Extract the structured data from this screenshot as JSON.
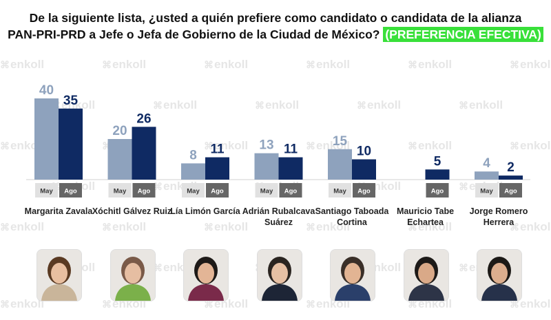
{
  "title": {
    "line1": "De la siguiente lista, ¿usted a quién prefiere como candidato o candidata de la alianza",
    "line2": "PAN-PRI-PRD a Jefe o Jefa de Gobierno de la Ciudad de México?",
    "badge": "(PREFERENCIA EFECTIVA)"
  },
  "watermark": {
    "text": "enkoll",
    "icon": "enkoll-logo-icon"
  },
  "colors": {
    "may": "#8ea2bd",
    "ago": "#0f2a63",
    "badge_bg": "#39e03a",
    "tab_may": "#e1e1e1",
    "tab_ago": "#666666"
  },
  "chart_data": {
    "type": "bar",
    "categories": [
      "Margarita Zavala",
      "Xóchitl Gálvez Ruiz",
      "Lía Limón García",
      "Adrián Rubalcava Suárez",
      "Santiago Taboada Cortina",
      "Mauricio Tabe Echartea",
      "Jorge Romero Herrera"
    ],
    "series": [
      {
        "name": "May",
        "values": [
          40,
          20,
          8,
          13,
          15,
          null,
          4
        ]
      },
      {
        "name": "Ago",
        "values": [
          35,
          26,
          11,
          11,
          10,
          5,
          2
        ]
      }
    ],
    "ylim": [
      0,
      45
    ],
    "grid": false,
    "legend": "none"
  },
  "candidates": [
    {
      "name": "Margarita Zavala"
    },
    {
      "name": "Xóchitl Gálvez Ruiz"
    },
    {
      "name": "Lía Limón García"
    },
    {
      "name": "Adrián Rubalcava Suárez"
    },
    {
      "name": "Santiago Taboada Cortina"
    },
    {
      "name": "Mauricio Tabe Echartea"
    },
    {
      "name": "Jorge Romero Herrera"
    }
  ],
  "photos": [
    {
      "icon": "candidate-photo-icon",
      "hair": "#5a3a22",
      "skin": "#e8bfa0",
      "top": "#c9b59a"
    },
    {
      "icon": "candidate-photo-icon",
      "hair": "#7a5a48",
      "skin": "#e6bea2",
      "top": "#7bb04a"
    },
    {
      "icon": "candidate-photo-icon",
      "hair": "#1e1a18",
      "skin": "#e3b596",
      "top": "#7a2a4a"
    },
    {
      "icon": "candidate-photo-icon",
      "hair": "#2a2420",
      "skin": "#e6c0a4",
      "top": "#1d2536"
    },
    {
      "icon": "candidate-photo-icon",
      "hair": "#3a2f28",
      "skin": "#e2b493",
      "top": "#2a3f6a"
    },
    {
      "icon": "candidate-photo-icon",
      "hair": "#1d1a18",
      "skin": "#d9a988",
      "top": "#2d3447"
    },
    {
      "icon": "candidate-photo-icon",
      "hair": "#1c1916",
      "skin": "#dcae8e",
      "top": "#26314a"
    }
  ]
}
